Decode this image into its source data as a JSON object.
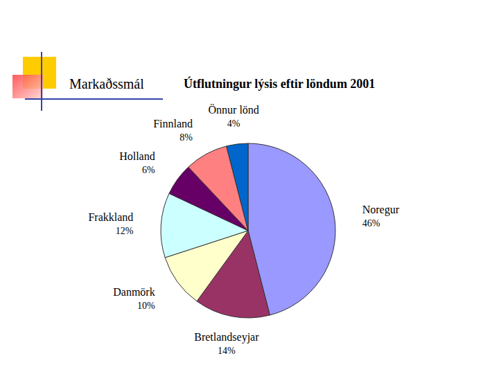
{
  "slide_header": "Markaðssmál",
  "chart_data": {
    "type": "pie",
    "title": "Útflutningur lýsis eftir löndum 2001",
    "categories": [
      "Noregur",
      "Bretlandseyjar",
      "Danmörk",
      "Frakkland",
      "Holland",
      "Finnland",
      "Önnur lönd"
    ],
    "values": [
      46,
      14,
      10,
      12,
      6,
      8,
      4
    ],
    "value_labels": [
      "46%",
      "14%",
      "10%",
      "12%",
      "6%",
      "8%",
      "4%"
    ],
    "colors": [
      "#9999ff",
      "#993366",
      "#ffffcc",
      "#ccffff",
      "#660066",
      "#ff8080",
      "#0066cc"
    ],
    "data_labels": true
  }
}
